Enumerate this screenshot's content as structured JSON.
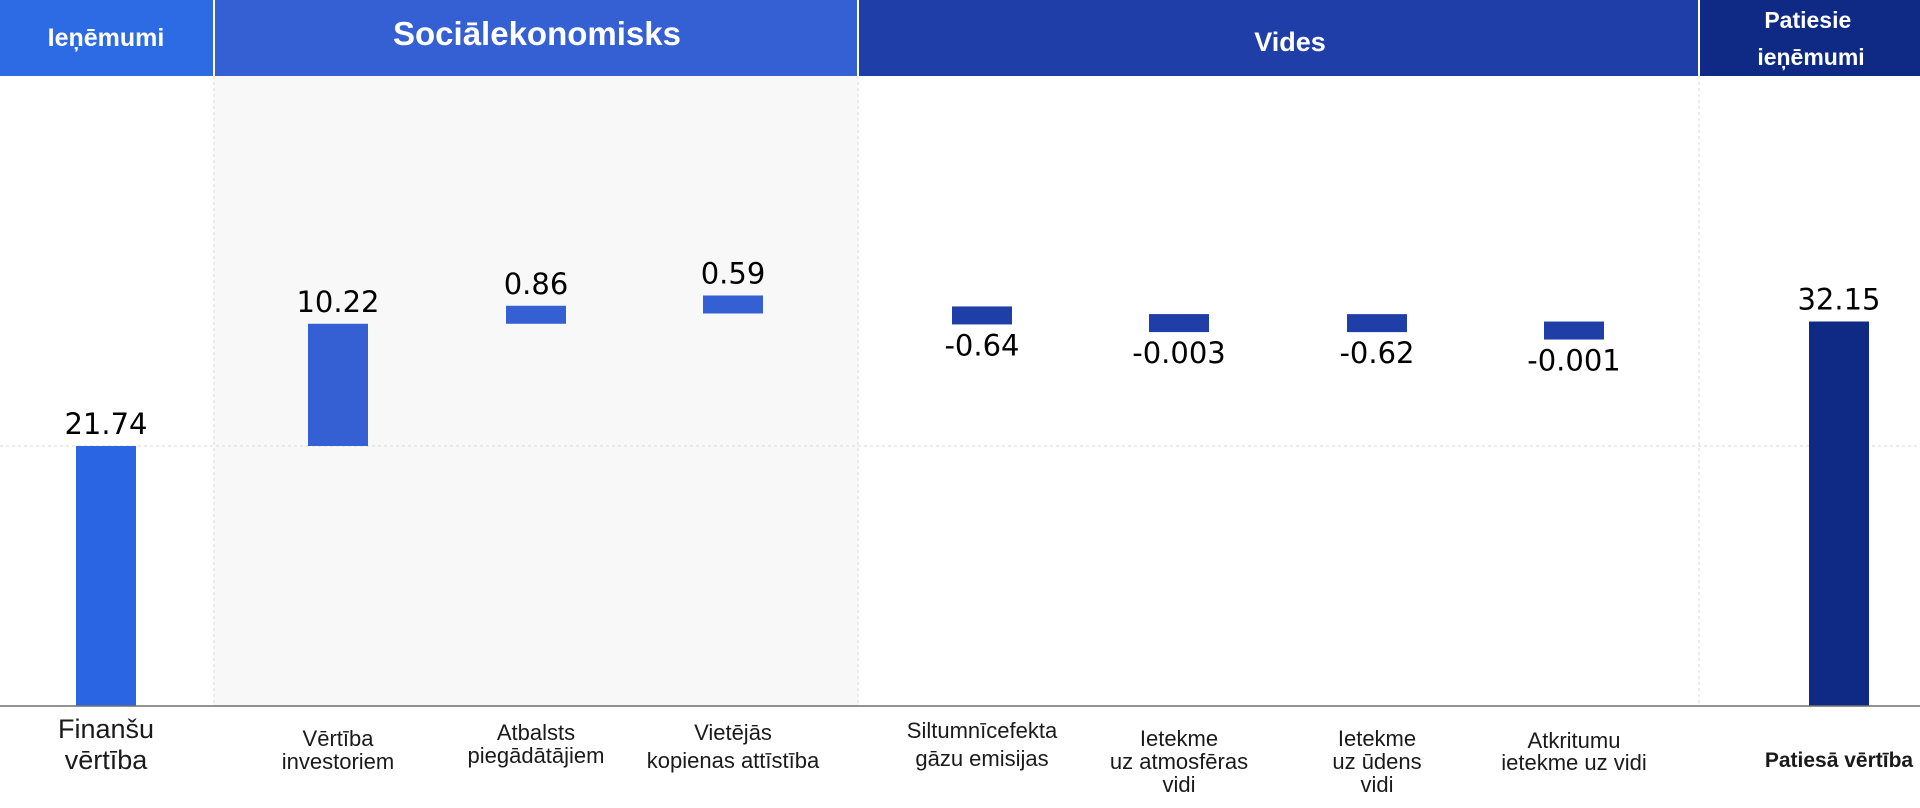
{
  "chart_data": {
    "type": "bar",
    "subtype": "waterfall",
    "title": "",
    "xlabel": "",
    "ylabel": "",
    "ylim": [
      0,
      45
    ],
    "grid": "dashed",
    "sections": [
      {
        "label": "Ieņēmumi",
        "color": "#2c6be3"
      },
      {
        "label": "Sociālekonomisks",
        "color": "#3560d3"
      },
      {
        "label": "Vides",
        "color": "#1f3ea8"
      },
      {
        "label": "Patiesie ieņēmumi",
        "color": "#0e2a85"
      }
    ],
    "categories": [
      "Finanšu vērtība",
      "Vērtība investoriem",
      "Atbalsts piegādātājiem",
      "Vietējās kopienas attīstība",
      "Siltumnīcefekta gāzu emisijas",
      "Ietekme uz atmosfēras vidi",
      "Ietekme uz ūdens vidi",
      "Atkritumu ietekme uz vidi",
      "Patiesā vērtība"
    ],
    "values": [
      21.74,
      10.22,
      0.86,
      0.59,
      -0.64,
      -0.003,
      -0.62,
      -0.001,
      32.15
    ],
    "value_labels": [
      "21.74",
      "10.22",
      "0.86",
      "0.59",
      "-0.64",
      "-0.003",
      "-0.62",
      "-0.001",
      "32.15"
    ],
    "bar_colors": [
      "#2a66e4",
      "#3560d3",
      "#3560d3",
      "#3560d3",
      "#1f3ea8",
      "#1f3ea8",
      "#1f3ea8",
      "#1f3ea8",
      "#0e2a85"
    ]
  }
}
